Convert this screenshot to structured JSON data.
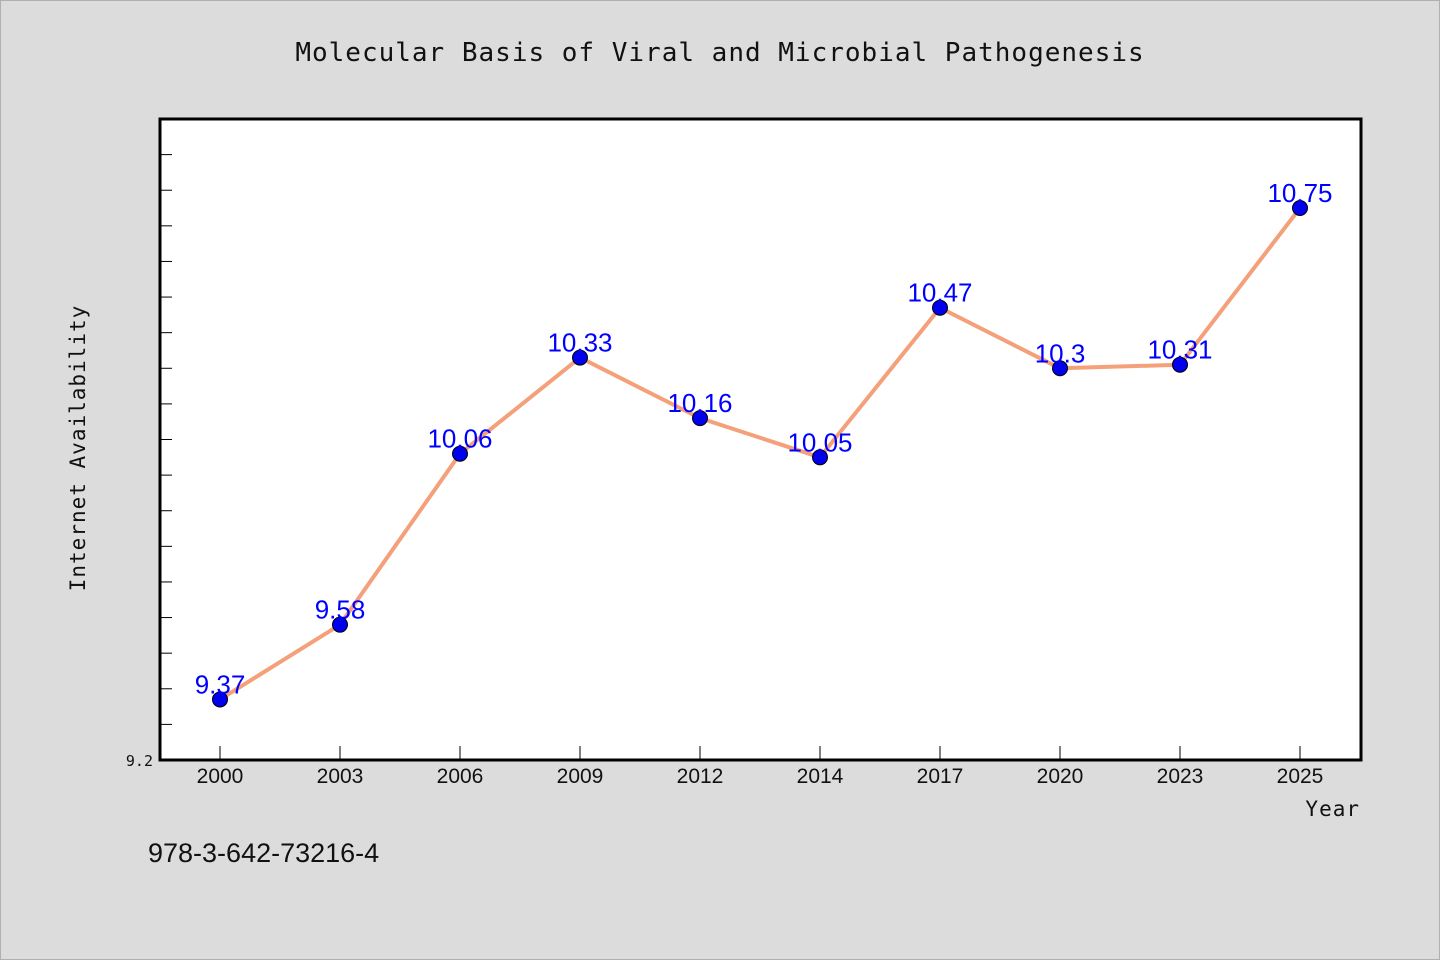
{
  "chart_data": {
    "type": "line",
    "title": "Molecular Basis of Viral and Microbial Pathogenesis",
    "xlabel": "Year",
    "ylabel": "Internet Availability",
    "categories": [
      "2000",
      "2003",
      "2006",
      "2009",
      "2012",
      "2014",
      "2017",
      "2020",
      "2023",
      "2025"
    ],
    "series": [
      {
        "values": [
          9.37,
          9.58,
          10.06,
          10.33,
          10.16,
          10.05,
          10.47,
          10.3,
          10.31,
          10.75
        ]
      }
    ],
    "y_tick_labels": [
      "9.2"
    ],
    "ylim": [
      9.2,
      11.0
    ],
    "line_color": "#f4a07a",
    "marker_color": "#0000ee",
    "label_color": "#0000ff",
    "grid": false,
    "legend": "none"
  },
  "footer": {
    "isbn": "978-3-642-73216-4"
  }
}
